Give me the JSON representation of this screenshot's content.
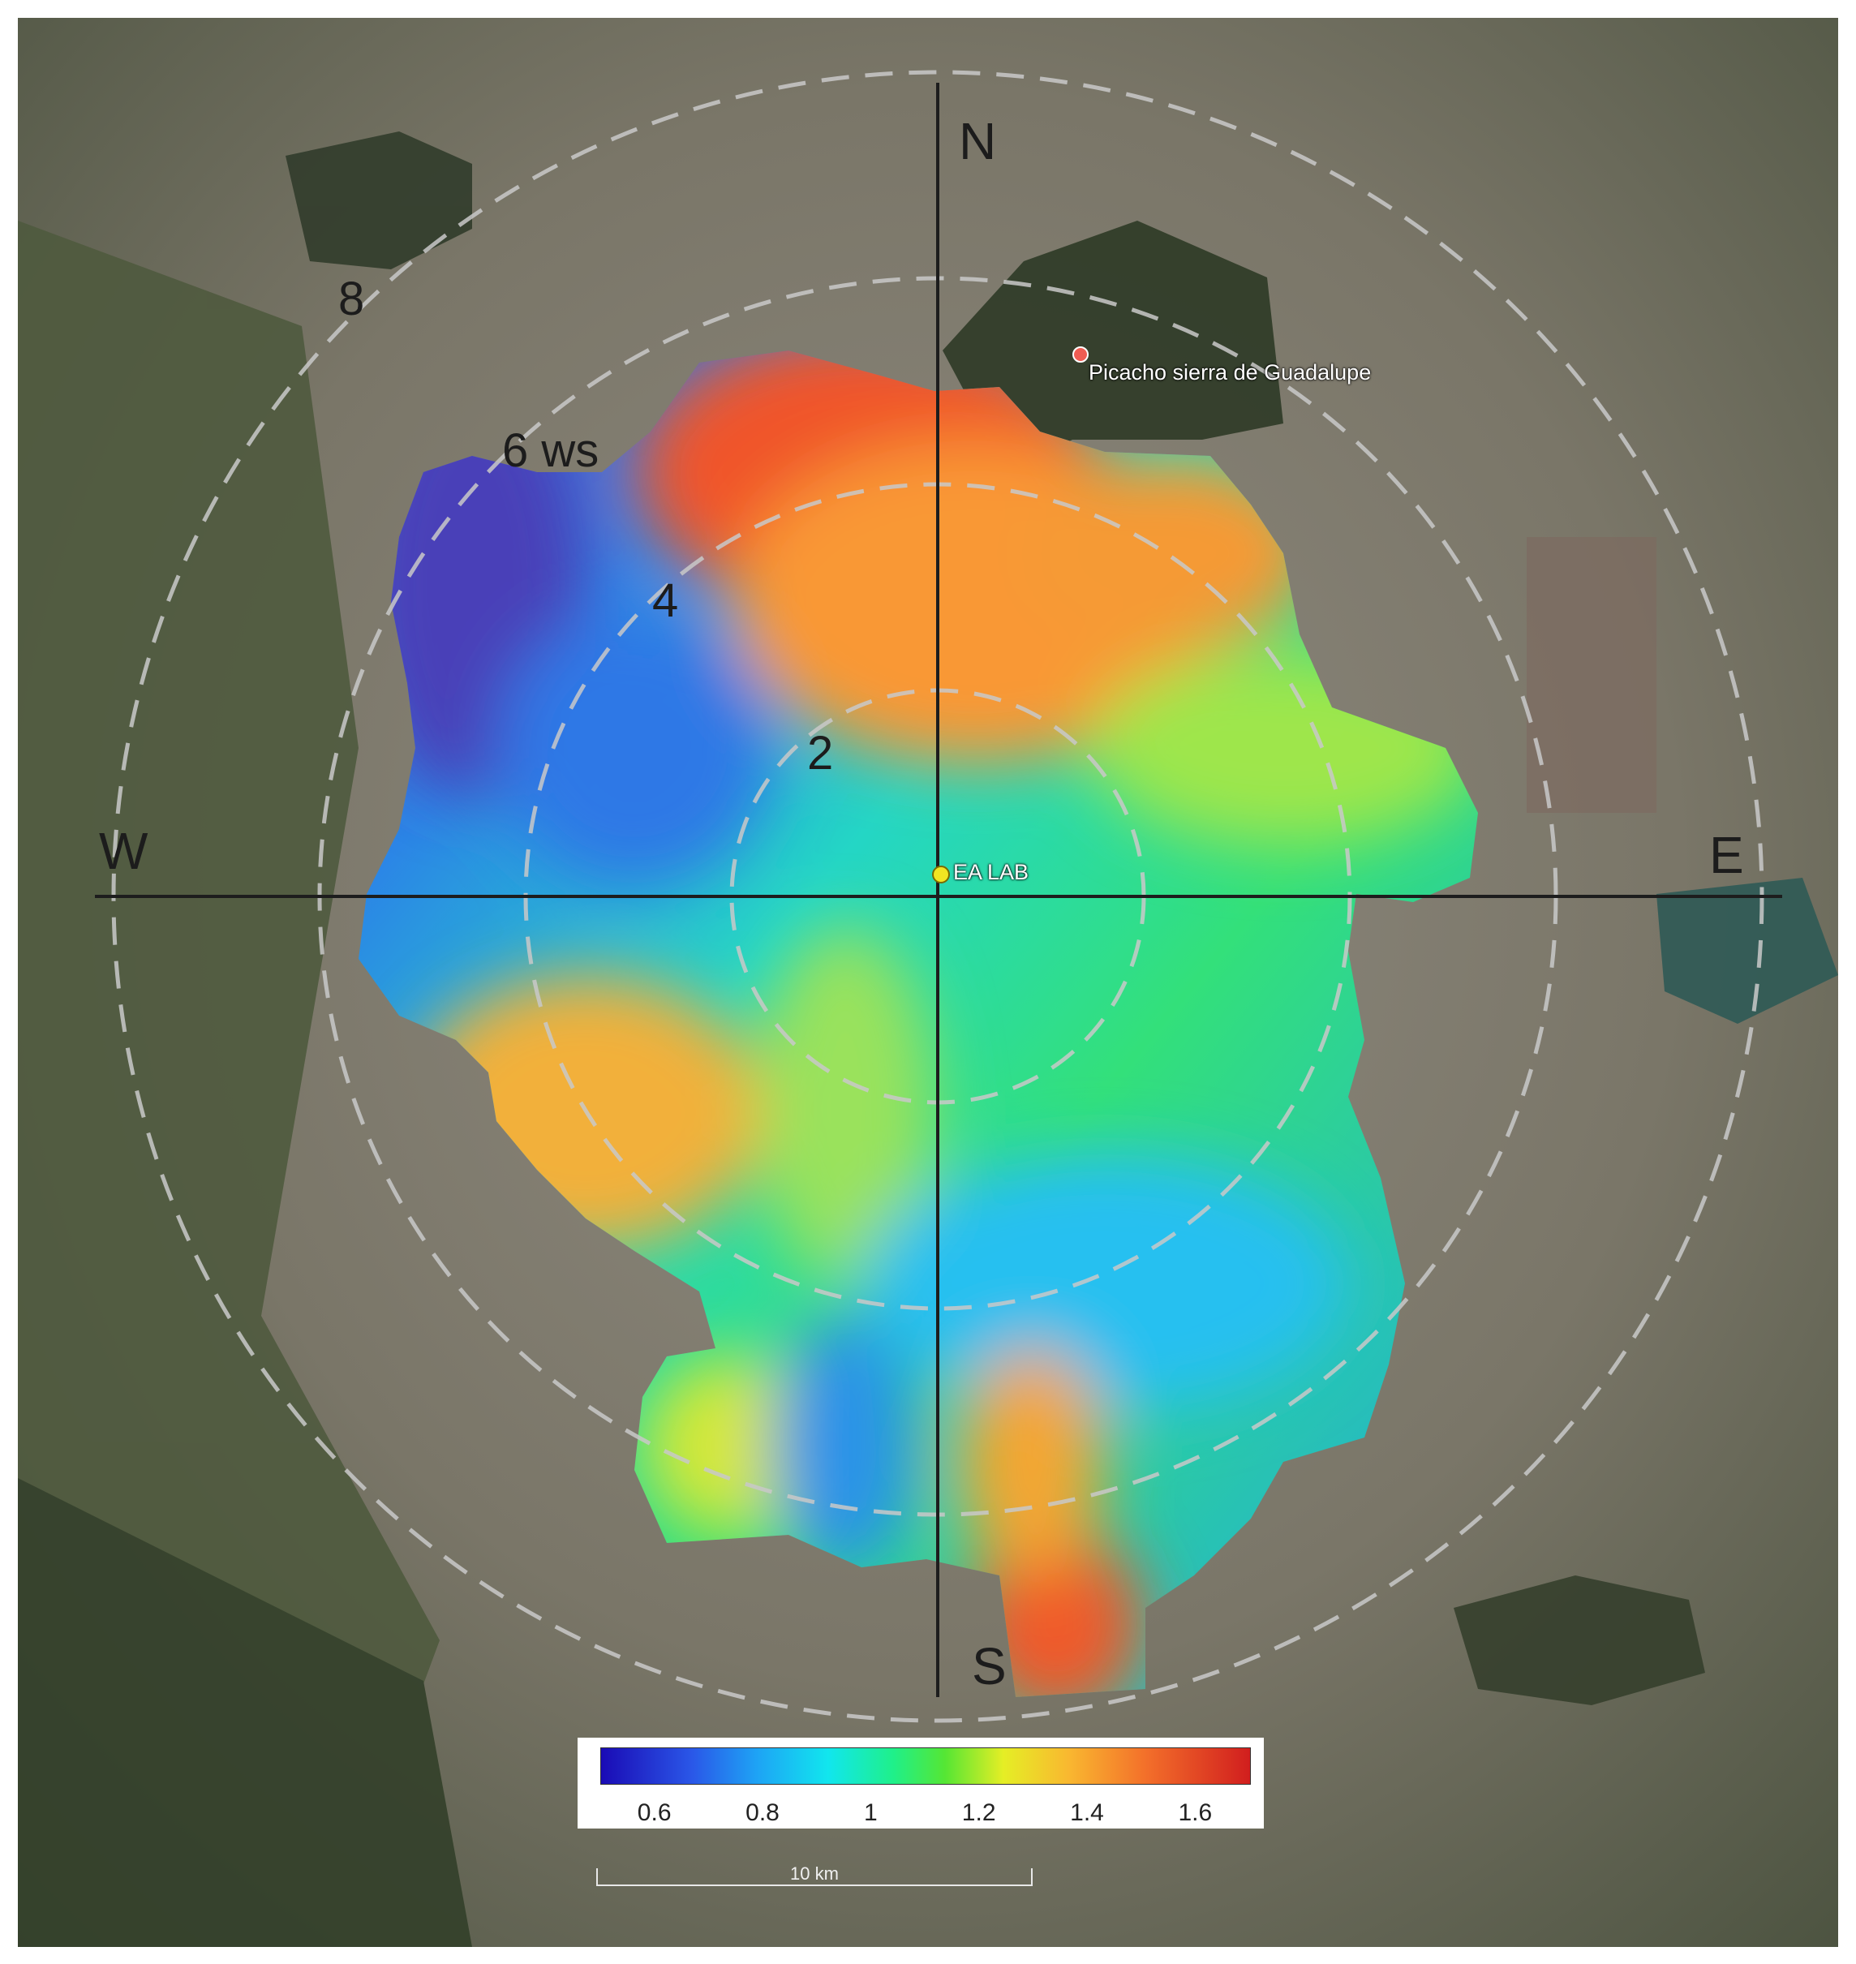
{
  "rings": [
    {
      "label": "2",
      "radius_km": 2
    },
    {
      "label": "4",
      "radius_km": 4
    },
    {
      "label": "6 ws",
      "radius_km": 6
    },
    {
      "label": "8",
      "radius_km": 8
    }
  ],
  "compass": {
    "north": "N",
    "south": "S",
    "east": "E",
    "west": "W"
  },
  "places": {
    "site": "EA LAB",
    "landmark": "Picacho sierra de Guadalupe"
  },
  "colorbar": {
    "min": 0.5,
    "max": 1.7,
    "ticks": [
      "0.6",
      "0.8",
      "1",
      "1.2",
      "1.4",
      "1.6"
    ],
    "tick_values": [
      0.6,
      0.8,
      1.0,
      1.2,
      1.4,
      1.6
    ],
    "colors": [
      "#1a0bb5",
      "#2a57e8",
      "#1ea3f5",
      "#11e6ee",
      "#1ff08a",
      "#55e634",
      "#e5ee25",
      "#f9b830",
      "#f36f2a",
      "#d11e1e"
    ]
  },
  "scale": {
    "label": "10 km"
  }
}
